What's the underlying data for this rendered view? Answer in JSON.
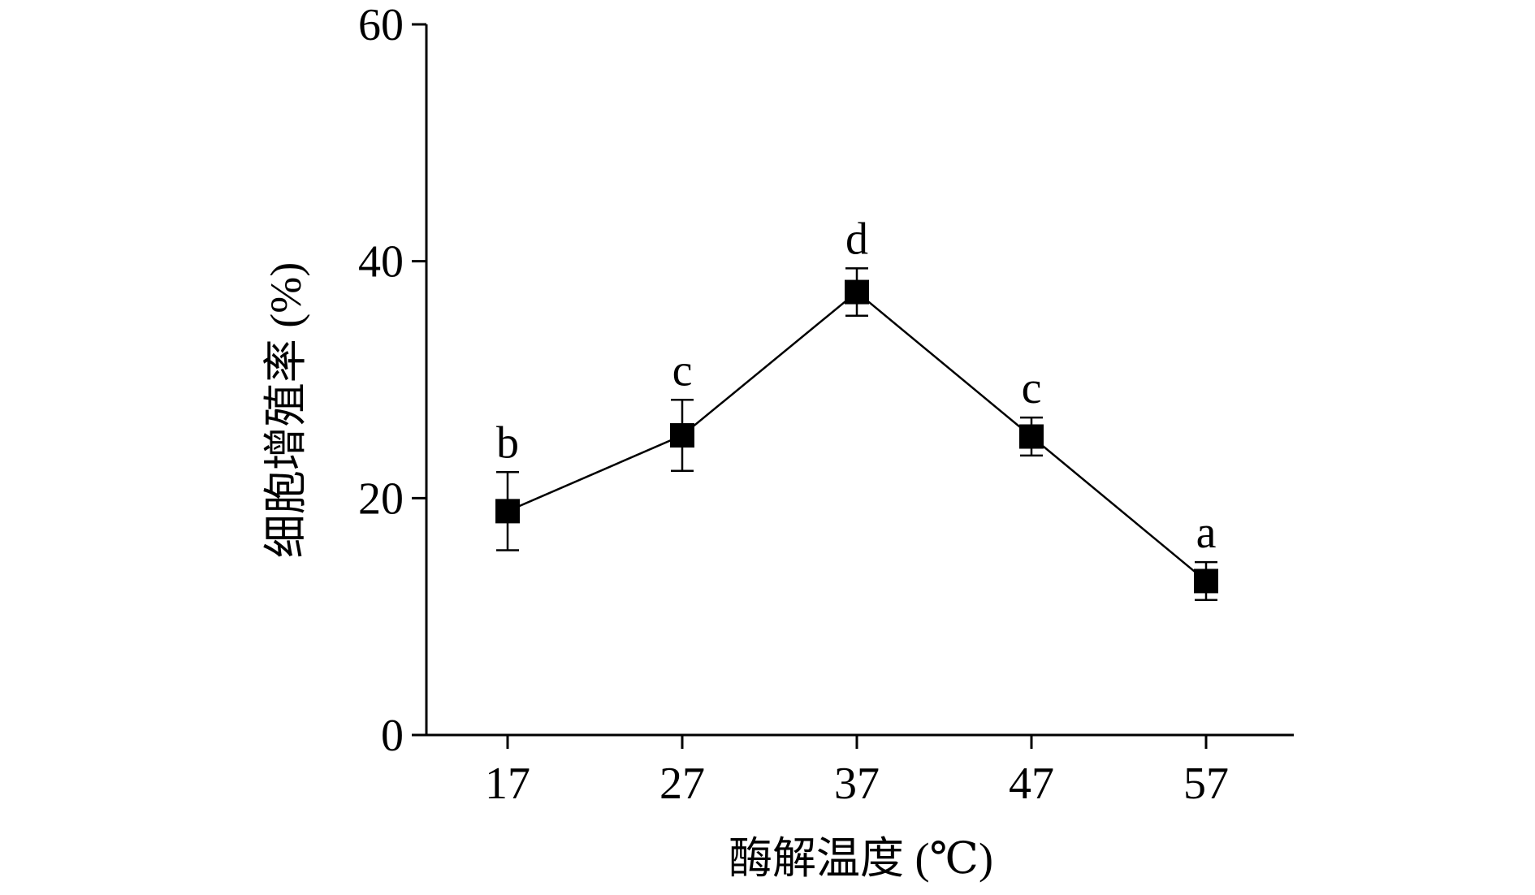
{
  "chart_data": {
    "type": "line",
    "title": "",
    "xlabel": "酶解温度 (℃)",
    "ylabel": "细胞增殖率 (%)",
    "x": [
      17,
      27,
      37,
      47,
      57
    ],
    "x_tick_labels": [
      "17",
      "27",
      "37",
      "47",
      "57"
    ],
    "ylim": [
      0,
      60
    ],
    "y_ticks": [
      0,
      20,
      40,
      60
    ],
    "y_tick_labels": [
      "0",
      "20",
      "40",
      "60"
    ],
    "grid": false,
    "legend": "none",
    "series": [
      {
        "values": [
          18.9,
          25.3,
          37.4,
          25.2,
          13.0
        ],
        "error": [
          3.3,
          3.0,
          2.0,
          1.6,
          1.6
        ],
        "significance_labels": [
          "b",
          "c",
          "d",
          "c",
          "a"
        ],
        "marker": "square",
        "color": "#000000"
      }
    ]
  }
}
